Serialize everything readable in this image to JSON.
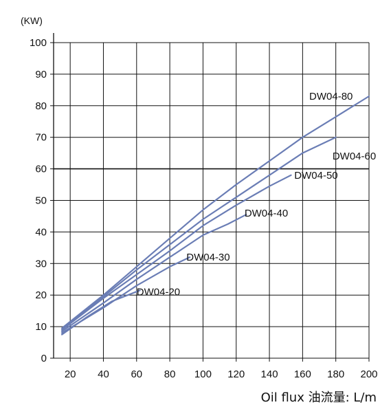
{
  "chart_data": {
    "type": "line",
    "y_unit": "(KW)",
    "xlabel": "Oil flux 油流量: L/m",
    "xlim": [
      10,
      200
    ],
    "ylim": [
      0,
      100
    ],
    "x_ticks": [
      20,
      40,
      60,
      80,
      100,
      120,
      140,
      160,
      180,
      200
    ],
    "y_ticks": [
      0,
      10,
      20,
      30,
      40,
      50,
      60,
      70,
      80,
      90,
      100
    ],
    "grid": true,
    "line_color": "#6a7db5",
    "series": [
      {
        "name": "DW04-20",
        "label_x": 60,
        "label_y": 21,
        "points": [
          [
            15,
            7.5
          ],
          [
            30,
            13
          ],
          [
            45,
            18
          ],
          [
            62,
            21.5
          ]
        ]
      },
      {
        "name": "DW04-30",
        "label_x": 90,
        "label_y": 32,
        "points": [
          [
            15,
            8
          ],
          [
            40,
            16
          ],
          [
            60,
            23
          ],
          [
            80,
            29
          ],
          [
            92,
            32
          ]
        ]
      },
      {
        "name": "DW04-40",
        "label_x": 125,
        "label_y": 46,
        "points": [
          [
            15,
            8.5
          ],
          [
            40,
            17.5
          ],
          [
            60,
            25
          ],
          [
            80,
            32
          ],
          [
            100,
            39
          ],
          [
            115,
            42.5
          ],
          [
            126,
            45.5
          ]
        ]
      },
      {
        "name": "DW04-50",
        "label_x": 155,
        "label_y": 58,
        "points": [
          [
            15,
            9
          ],
          [
            40,
            19
          ],
          [
            60,
            26.5
          ],
          [
            80,
            34
          ],
          [
            100,
            42
          ],
          [
            120,
            48.5
          ],
          [
            140,
            54.5
          ],
          [
            153,
            58
          ]
        ]
      },
      {
        "name": "DW04-60",
        "label_x": 178,
        "label_y": 64,
        "points": [
          [
            15,
            9
          ],
          [
            40,
            19.5
          ],
          [
            60,
            28
          ],
          [
            80,
            36
          ],
          [
            100,
            44
          ],
          [
            120,
            51
          ],
          [
            140,
            58
          ],
          [
            160,
            65
          ],
          [
            180,
            70
          ]
        ]
      },
      {
        "name": "DW04-80",
        "label_x": 164,
        "label_y": 83,
        "points": [
          [
            15,
            9.5
          ],
          [
            40,
            20
          ],
          [
            60,
            29
          ],
          [
            80,
            38
          ],
          [
            100,
            47
          ],
          [
            120,
            55
          ],
          [
            140,
            62.5
          ],
          [
            160,
            70
          ],
          [
            180,
            76.5
          ],
          [
            200,
            83
          ]
        ]
      }
    ]
  }
}
